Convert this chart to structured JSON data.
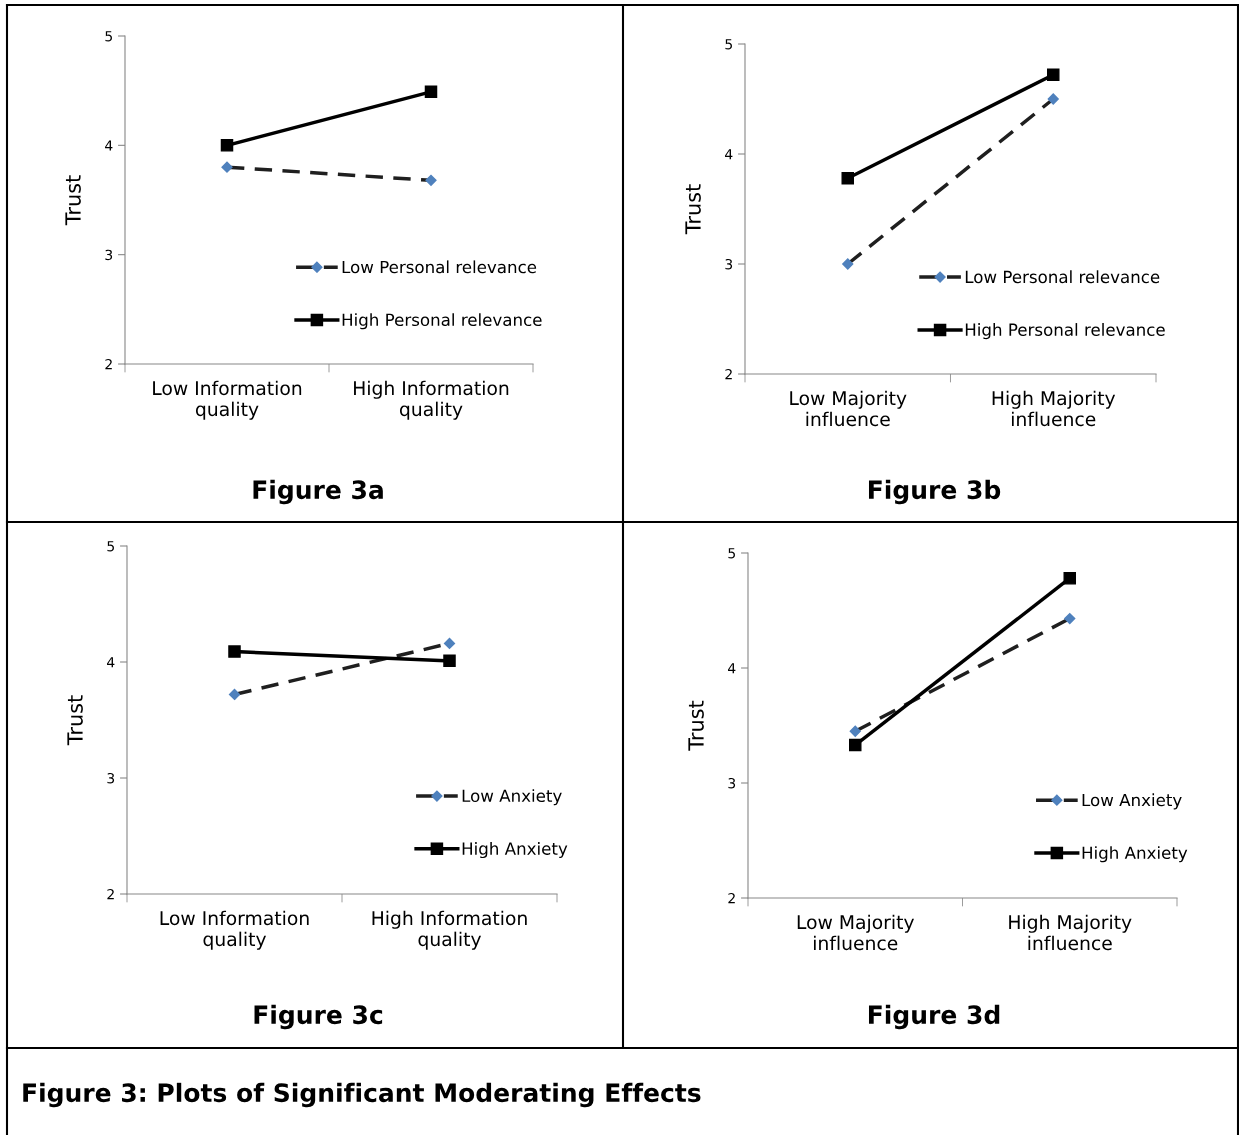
{
  "chart_data": [
    {
      "type": "line",
      "title": "Figure 3a",
      "ylabel": "Trust",
      "categories": [
        "Low Information\nquality",
        "High Information\nquality"
      ],
      "ylim": [
        2,
        5
      ],
      "yticks": [
        2,
        3,
        4,
        5
      ],
      "grid": false,
      "legend": "right",
      "series": [
        {
          "name": "Low Personal relevance",
          "color": "#1f1f1f",
          "marker": "diamond",
          "line_style": "dashed",
          "values": [
            3.8,
            3.68
          ]
        },
        {
          "name": "High Personal relevance",
          "color": "#000000",
          "marker": "square",
          "line_style": "solid",
          "values": [
            4.0,
            4.49
          ]
        }
      ]
    },
    {
      "type": "line",
      "title": "Figure 3b",
      "ylabel": "Trust",
      "categories": [
        "Low Majority\ninfluence",
        "High Majority\ninfluence"
      ],
      "ylim": [
        2,
        5
      ],
      "yticks": [
        2,
        3,
        4,
        5
      ],
      "grid": false,
      "legend": "right",
      "series": [
        {
          "name": "Low Personal relevance",
          "color": "#1f1f1f",
          "marker": "diamond",
          "line_style": "dashed",
          "values": [
            3.0,
            4.5
          ]
        },
        {
          "name": "High Personal relevance",
          "color": "#000000",
          "marker": "square",
          "line_style": "solid",
          "values": [
            3.78,
            4.72
          ]
        }
      ]
    },
    {
      "type": "line",
      "title": "Figure 3c",
      "ylabel": "Trust",
      "categories": [
        "Low Information\nquality",
        "High Information\nquality"
      ],
      "ylim": [
        2,
        5
      ],
      "yticks": [
        2,
        3,
        4,
        5
      ],
      "grid": false,
      "legend": "right",
      "series": [
        {
          "name": "Low Anxiety",
          "color": "#1f1f1f",
          "marker": "diamond",
          "line_style": "dashed",
          "values": [
            3.72,
            4.16
          ]
        },
        {
          "name": "High Anxiety",
          "color": "#000000",
          "marker": "square",
          "line_style": "solid",
          "values": [
            4.09,
            4.01
          ]
        }
      ]
    },
    {
      "type": "line",
      "title": "Figure 3d",
      "ylabel": "Trust",
      "categories": [
        "Low Majority\ninfluence",
        "High Majority\ninfluence"
      ],
      "ylim": [
        2,
        5
      ],
      "yticks": [
        2,
        3,
        4,
        5
      ],
      "grid": false,
      "legend": "right",
      "annotations": [
        "Figure 3: Plots of Significant Moderating Effects"
      ],
      "series": [
        {
          "name": "Low Anxiety",
          "color": "#1f1f1f",
          "marker": "diamond",
          "line_style": "dashed",
          "values": [
            3.45,
            4.43
          ]
        },
        {
          "name": "High Anxiety",
          "color": "#000000",
          "marker": "square",
          "line_style": "solid",
          "values": [
            3.33,
            4.78
          ]
        }
      ]
    }
  ]
}
